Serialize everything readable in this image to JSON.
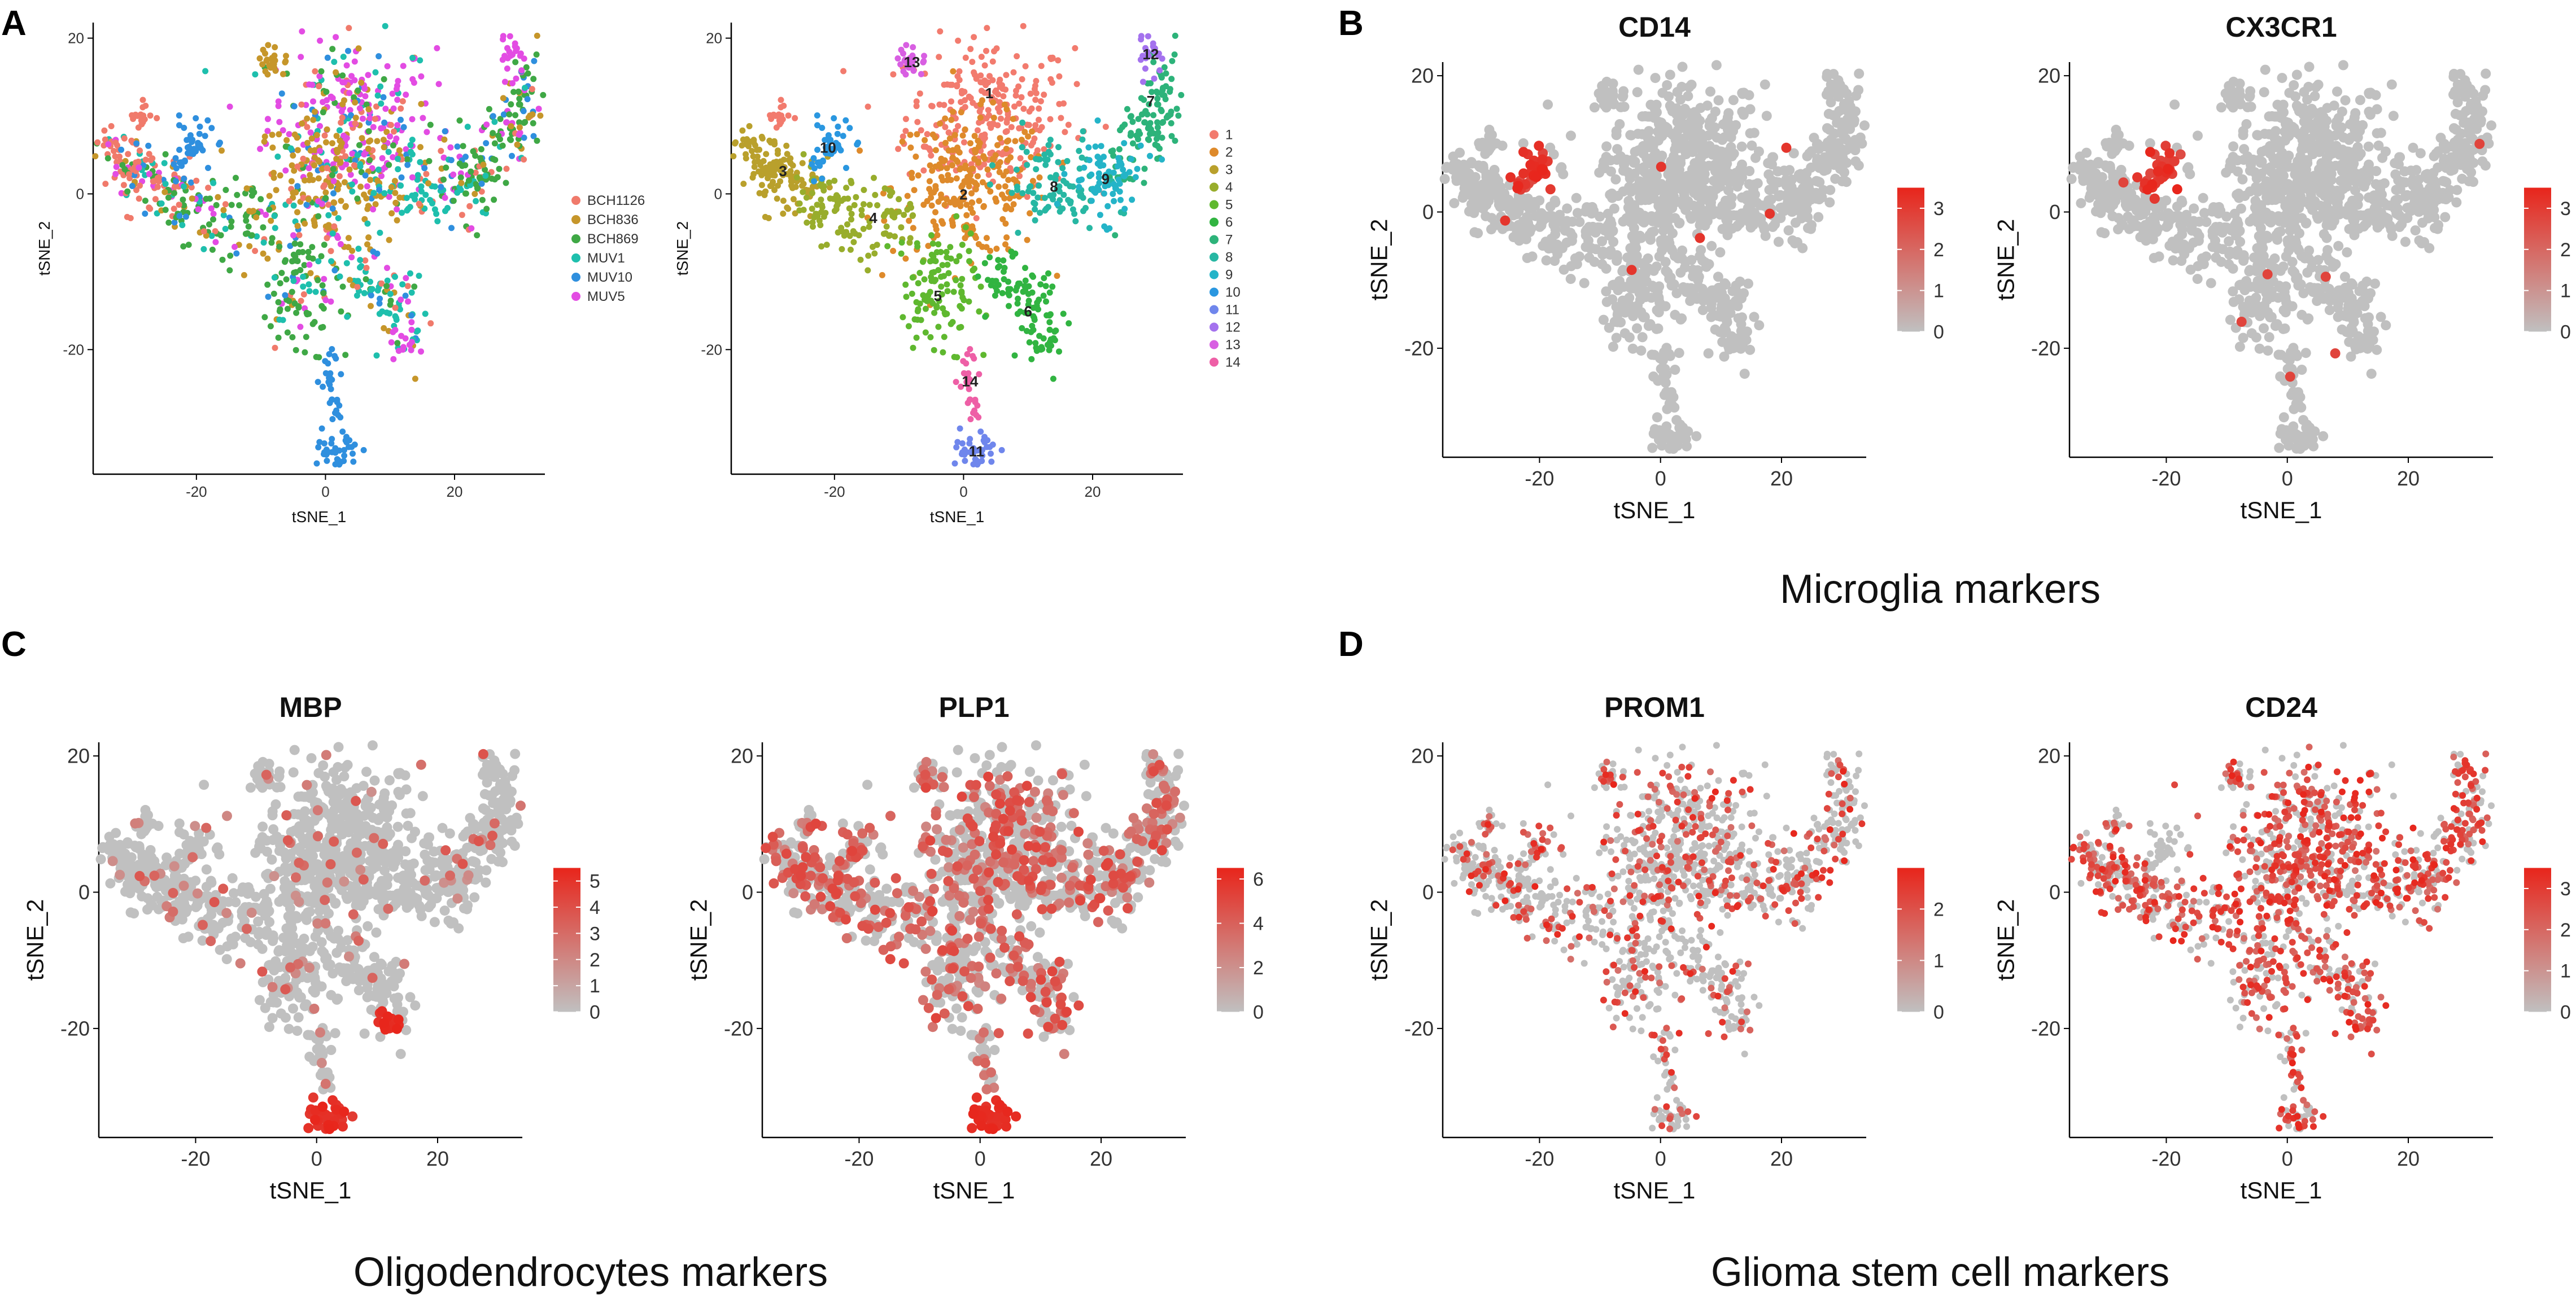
{
  "figure": {
    "panel_letters": [
      "A",
      "B",
      "C",
      "D"
    ],
    "group_captions": {
      "B": "Microglia markers",
      "C": "Oligodendrocytes markers",
      "D": "Glioma stem cell markers"
    }
  },
  "colors": {
    "grey": "#c0c0c0",
    "red": "#e8251b",
    "samples": [
      "#f07a6b",
      "#c6962a",
      "#3fa845",
      "#1ebfad",
      "#2f8fde",
      "#e34ce3"
    ],
    "clusters": [
      "#f27b6e",
      "#de8a2b",
      "#b9a02c",
      "#98ad2c",
      "#5fb82f",
      "#31b441",
      "#2db37a",
      "#27b7a3",
      "#24b4c8",
      "#2a97e0",
      "#6f86ec",
      "#a472ee",
      "#d85fe2",
      "#ee5fa6"
    ]
  },
  "chart_data": [
    {
      "id": "A1",
      "panel": "A",
      "type": "scatter",
      "title": "",
      "xlabel": "tSNE_1",
      "ylabel": "tSNE_2",
      "xlim": [
        -36,
        34
      ],
      "ylim": [
        -36,
        22
      ],
      "xticks": [
        -20,
        0,
        20
      ],
      "yticks": [
        -20,
        0,
        20
      ],
      "color_by": "sample",
      "legend": [
        "BCH1126",
        "BCH836",
        "BCH869",
        "MUV1",
        "MUV10",
        "MUV5"
      ]
    },
    {
      "id": "A2",
      "panel": "A",
      "type": "scatter",
      "title": "",
      "xlabel": "tSNE_1",
      "ylabel": "tSNE_2",
      "xlim": [
        -36,
        34
      ],
      "ylim": [
        -36,
        22
      ],
      "xticks": [
        -20,
        0,
        20
      ],
      "yticks": [
        -20,
        0,
        20
      ],
      "color_by": "cluster",
      "legend": [
        "1",
        "2",
        "3",
        "4",
        "5",
        "6",
        "7",
        "8",
        "9",
        "10",
        "11",
        "12",
        "13",
        "14"
      ],
      "cluster_labels": [
        {
          "text": "1",
          "x": 4,
          "y": 13
        },
        {
          "text": "2",
          "x": 0,
          "y": 0
        },
        {
          "text": "3",
          "x": -28,
          "y": 3
        },
        {
          "text": "4",
          "x": -14,
          "y": -3
        },
        {
          "text": "5",
          "x": -4,
          "y": -13
        },
        {
          "text": "6",
          "x": 10,
          "y": -15
        },
        {
          "text": "7",
          "x": 29,
          "y": 12
        },
        {
          "text": "8",
          "x": 14,
          "y": 1
        },
        {
          "text": "9",
          "x": 22,
          "y": 2
        },
        {
          "text": "10",
          "x": -21,
          "y": 6
        },
        {
          "text": "11",
          "x": 2,
          "y": -33
        },
        {
          "text": "12",
          "x": 29,
          "y": 18
        },
        {
          "text": "13",
          "x": -8,
          "y": 17
        },
        {
          "text": "14",
          "x": 1,
          "y": -24
        }
      ]
    },
    {
      "id": "B1",
      "panel": "B",
      "type": "scatter",
      "title": "CD14",
      "xlabel": "tSNE_1",
      "ylabel": "tSNE_2",
      "xlim": [
        -36,
        34
      ],
      "ylim": [
        -36,
        22
      ],
      "xticks": [
        -20,
        0,
        20
      ],
      "yticks": [
        -20,
        0,
        20
      ],
      "color_by": "expression",
      "pattern": "microglia",
      "colorbar": {
        "min": 0,
        "max": 3.5,
        "ticks": [
          "0",
          "1",
          "2",
          "3"
        ]
      }
    },
    {
      "id": "B2",
      "panel": "B",
      "type": "scatter",
      "title": "CX3CR1",
      "xlabel": "tSNE_1",
      "ylabel": "tSNE_2",
      "xlim": [
        -36,
        34
      ],
      "ylim": [
        -36,
        22
      ],
      "xticks": [
        -20,
        0,
        20
      ],
      "yticks": [
        -20,
        0,
        20
      ],
      "color_by": "expression",
      "pattern": "microglia2",
      "colorbar": {
        "min": 0,
        "max": 3.5,
        "ticks": [
          "0",
          "1",
          "2",
          "3"
        ]
      }
    },
    {
      "id": "C1",
      "panel": "C",
      "type": "scatter",
      "title": "MBP",
      "xlabel": "tSNE_1",
      "ylabel": "tSNE_2",
      "xlim": [
        -36,
        34
      ],
      "ylim": [
        -36,
        22
      ],
      "xticks": [
        -20,
        0,
        20
      ],
      "yticks": [
        -20,
        0,
        20
      ],
      "color_by": "expression",
      "pattern": "oligo_sparse",
      "colorbar": {
        "min": 0,
        "max": 5.5,
        "ticks": [
          "0",
          "1",
          "2",
          "3",
          "4",
          "5"
        ]
      }
    },
    {
      "id": "C2",
      "panel": "C",
      "type": "scatter",
      "title": "PLP1",
      "xlabel": "tSNE_1",
      "ylabel": "tSNE_2",
      "xlim": [
        -36,
        34
      ],
      "ylim": [
        -36,
        22
      ],
      "xticks": [
        -20,
        0,
        20
      ],
      "yticks": [
        -20,
        0,
        20
      ],
      "color_by": "expression",
      "pattern": "oligo_dense",
      "colorbar": {
        "min": 0,
        "max": 6.5,
        "ticks": [
          "0",
          "2",
          "4",
          "6"
        ]
      }
    },
    {
      "id": "D1",
      "panel": "D",
      "type": "scatter",
      "title": "PROM1",
      "xlabel": "tSNE_1",
      "ylabel": "tSNE_2",
      "xlim": [
        -36,
        34
      ],
      "ylim": [
        -36,
        22
      ],
      "xticks": [
        -20,
        0,
        20
      ],
      "yticks": [
        -20,
        0,
        20
      ],
      "color_by": "expression",
      "pattern": "stem_sparse",
      "colorbar": {
        "min": 0,
        "max": 2.8,
        "ticks": [
          "0",
          "1",
          "2"
        ]
      }
    },
    {
      "id": "D2",
      "panel": "D",
      "type": "scatter",
      "title": "CD24",
      "xlabel": "tSNE_1",
      "ylabel": "tSNE_2",
      "xlim": [
        -36,
        34
      ],
      "ylim": [
        -36,
        22
      ],
      "xticks": [
        -20,
        0,
        20
      ],
      "yticks": [
        -20,
        0,
        20
      ],
      "color_by": "expression",
      "pattern": "stem_dense",
      "colorbar": {
        "min": 0,
        "max": 3.5,
        "ticks": [
          "0",
          "1",
          "2",
          "3"
        ]
      }
    }
  ]
}
